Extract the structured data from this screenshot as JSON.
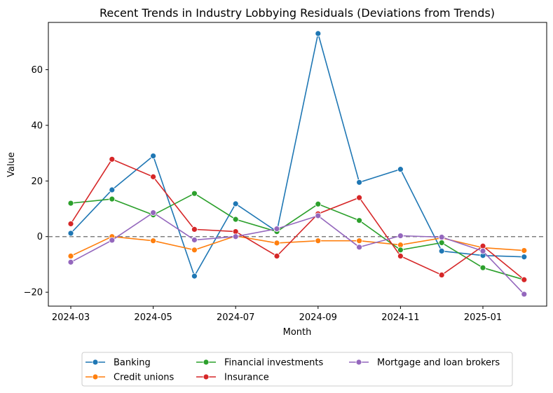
{
  "chart_data": {
    "type": "line",
    "title": "Recent Trends in Industry Lobbying Residuals (Deviations from Trends)",
    "xlabel": "Month",
    "ylabel": "Value",
    "ylim": [
      -25,
      77
    ],
    "x": [
      "2024-03",
      "2024-04",
      "2024-05",
      "2024-06",
      "2024-07",
      "2024-08",
      "2024-09",
      "2024-10",
      "2024-11",
      "2024-12",
      "2025-01",
      "2025-02"
    ],
    "x_ticks": [
      "2024-03",
      "2024-05",
      "2024-07",
      "2024-09",
      "2024-11",
      "2025-01"
    ],
    "y_ticks": [
      -20,
      0,
      20,
      40,
      60
    ],
    "reference_line": 0,
    "legend_position": "bottom-center",
    "series": [
      {
        "name": "Banking",
        "color": "#1f77b4",
        "values": [
          1.2,
          16.8,
          29.0,
          -14.2,
          11.8,
          1.8,
          73.0,
          19.5,
          24.2,
          -5.2,
          -6.8,
          -7.3
        ]
      },
      {
        "name": "Credit unions",
        "color": "#ff7f0e",
        "values": [
          -7.0,
          0.0,
          -1.5,
          -4.8,
          0.2,
          -2.3,
          -1.5,
          -1.5,
          -3.0,
          -0.5,
          -4.0,
          -5.0
        ]
      },
      {
        "name": "Financial investments",
        "color": "#2ca02c",
        "values": [
          12.0,
          13.5,
          7.8,
          15.5,
          6.2,
          1.8,
          11.7,
          5.8,
          -4.8,
          -2.2,
          -11.2,
          -15.5
        ]
      },
      {
        "name": "Insurance",
        "color": "#d62728",
        "values": [
          4.6,
          27.8,
          21.5,
          2.6,
          1.8,
          -7.0,
          8.2,
          14.0,
          -7.0,
          -13.8,
          -3.4,
          -15.5
        ]
      },
      {
        "name": "Mortgage and loan brokers",
        "color": "#9467bd",
        "values": [
          -9.2,
          -1.3,
          8.6,
          -1.2,
          0.0,
          2.8,
          7.5,
          -3.8,
          0.3,
          -0.2,
          -5.2,
          -20.7
        ]
      }
    ]
  }
}
